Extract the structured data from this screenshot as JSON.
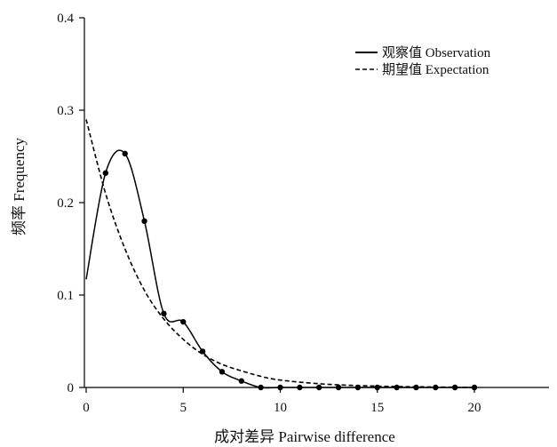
{
  "chart_data": {
    "type": "line",
    "xlabel": "成对差异 Pairwise difference",
    "ylabel": "频率 Frequency",
    "xlim": [
      0,
      24
    ],
    "ylim": [
      0,
      0.4
    ],
    "x_ticks": [
      "0",
      "5",
      "10",
      "15",
      "20"
    ],
    "y_ticks": [
      "0",
      "0.1",
      "0.2",
      "0.3",
      "0.4"
    ],
    "grid": false,
    "legend_position": "top-right",
    "series": [
      {
        "name": "观察值 Observation",
        "style": "solid",
        "color": "#000000",
        "markers": true,
        "x": [
          0,
          1,
          2,
          3,
          4,
          5,
          6,
          7,
          8,
          9,
          10,
          11,
          12,
          13,
          14,
          15,
          16,
          17,
          18,
          19,
          20
        ],
        "y": [
          0.117,
          0.232,
          0.253,
          0.18,
          0.08,
          0.071,
          0.039,
          0.017,
          0.007,
          0,
          0,
          0,
          0,
          0,
          0,
          0,
          0,
          0,
          0,
          0,
          0
        ]
      },
      {
        "name": "期望值 Expectation",
        "style": "dashed",
        "color": "#000000",
        "markers": false,
        "x": [
          0,
          1,
          2,
          3,
          4,
          5,
          6,
          7,
          8,
          9,
          10,
          12,
          14,
          16,
          18,
          20
        ],
        "y": [
          0.29,
          0.21,
          0.15,
          0.105,
          0.074,
          0.052,
          0.036,
          0.025,
          0.018,
          0.012,
          0.008,
          0.004,
          0.002,
          0.001,
          0.0005,
          0
        ]
      }
    ]
  }
}
